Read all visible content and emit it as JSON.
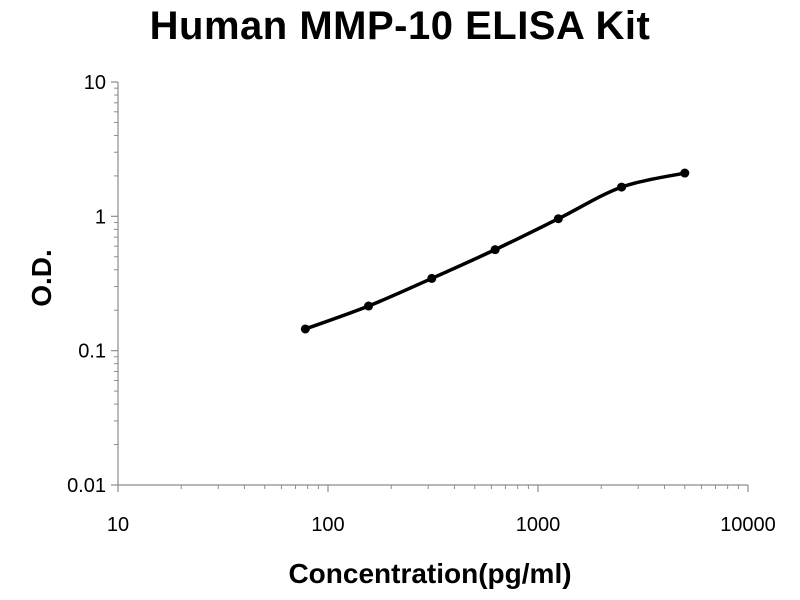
{
  "chart_data": {
    "type": "line",
    "title": "Human MMP-10 ELISA Kit",
    "xlabel": "Concentration(pg/ml)",
    "ylabel": "O.D.",
    "x_scale": "log",
    "y_scale": "log",
    "xlim": [
      10,
      10000
    ],
    "ylim": [
      0.01,
      10
    ],
    "x_ticks": [
      "10",
      "100",
      "1000",
      "10000"
    ],
    "y_ticks": [
      "10",
      "1",
      "0.1",
      "0.01"
    ],
    "grid": false,
    "legend": "none",
    "series": [
      {
        "x": [
          78,
          156,
          312,
          625,
          1250,
          2500,
          5000
        ],
        "y": [
          0.145,
          0.215,
          0.345,
          0.565,
          0.96,
          1.65,
          2.1
        ],
        "color": "#000000",
        "marker": "circle",
        "smooth": true
      }
    ]
  }
}
